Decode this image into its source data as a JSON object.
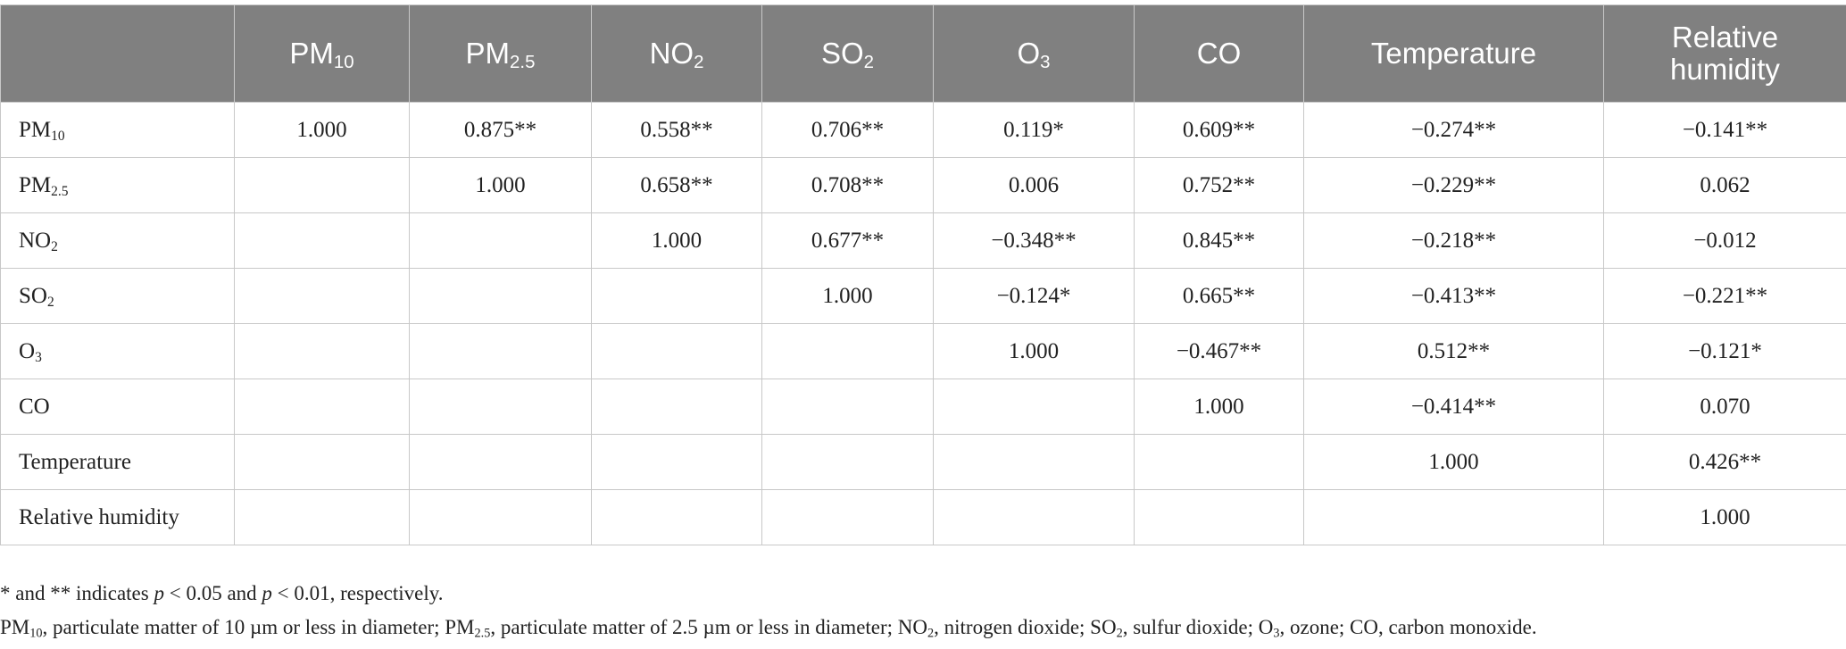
{
  "table": {
    "columns": [
      [
        {
          "text": "PM"
        },
        {
          "text": "10",
          "style": "sub"
        }
      ],
      [
        {
          "text": "PM"
        },
        {
          "text": "2.5",
          "style": "sub"
        }
      ],
      [
        {
          "text": "NO"
        },
        {
          "text": "2",
          "style": "sub"
        }
      ],
      [
        {
          "text": "SO"
        },
        {
          "text": "2",
          "style": "sub"
        }
      ],
      [
        {
          "text": "O"
        },
        {
          "text": "3",
          "style": "sub"
        }
      ],
      [
        {
          "text": "CO"
        }
      ],
      [
        {
          "text": "Temperature"
        }
      ],
      [
        {
          "text": "Relative humidity"
        }
      ]
    ],
    "rows": [
      {
        "label": [
          {
            "text": "PM"
          },
          {
            "text": "10",
            "style": "sub"
          }
        ],
        "cells": [
          "1.000",
          "0.875**",
          "0.558**",
          "0.706**",
          "0.119*",
          "0.609**",
          "−0.274**",
          "−0.141**"
        ]
      },
      {
        "label": [
          {
            "text": "PM"
          },
          {
            "text": "2.5",
            "style": "sub"
          }
        ],
        "cells": [
          null,
          "1.000",
          "0.658**",
          "0.708**",
          "0.006",
          "0.752**",
          "−0.229**",
          "0.062"
        ]
      },
      {
        "label": [
          {
            "text": "NO"
          },
          {
            "text": "2",
            "style": "sub"
          }
        ],
        "cells": [
          null,
          null,
          "1.000",
          "0.677**",
          "−0.348**",
          "0.845**",
          "−0.218**",
          "−0.012"
        ]
      },
      {
        "label": [
          {
            "text": "SO"
          },
          {
            "text": "2",
            "style": "sub"
          }
        ],
        "cells": [
          null,
          null,
          null,
          "1.000",
          "−0.124*",
          "0.665**",
          "−0.413**",
          "−0.221**"
        ]
      },
      {
        "label": [
          {
            "text": "O"
          },
          {
            "text": "3",
            "style": "sub"
          }
        ],
        "cells": [
          null,
          null,
          null,
          null,
          "1.000",
          "−0.467**",
          "0.512**",
          "−0.121*"
        ]
      },
      {
        "label": [
          {
            "text": "CO"
          }
        ],
        "cells": [
          null,
          null,
          null,
          null,
          null,
          "1.000",
          "−0.414**",
          "0.070"
        ]
      },
      {
        "label": [
          {
            "text": "Temperature"
          }
        ],
        "cells": [
          null,
          null,
          null,
          null,
          null,
          null,
          "1.000",
          "0.426**"
        ]
      },
      {
        "label": [
          {
            "text": "Relative humidity"
          }
        ],
        "cells": [
          null,
          null,
          null,
          null,
          null,
          null,
          null,
          "1.000"
        ]
      }
    ]
  },
  "footnotes": [
    [
      {
        "text": "* and ** indicates "
      },
      {
        "text": "p",
        "style": "italic"
      },
      {
        "text": " < 0.05 and "
      },
      {
        "text": "p",
        "style": "italic"
      },
      {
        "text": " < 0.01, respectively."
      }
    ],
    [
      {
        "text": "PM"
      },
      {
        "text": "10",
        "style": "sub"
      },
      {
        "text": ", particulate matter of 10 µm or less in diameter; PM"
      },
      {
        "text": "2.5",
        "style": "sub"
      },
      {
        "text": ", particulate matter of 2.5 µm or less in diameter; NO"
      },
      {
        "text": "2",
        "style": "sub"
      },
      {
        "text": ", nitrogen dioxide; SO"
      },
      {
        "text": "2",
        "style": "sub"
      },
      {
        "text": ", sulfur dioxide; O"
      },
      {
        "text": "3",
        "style": "sub"
      },
      {
        "text": ", ozone; CO, carbon monoxide."
      }
    ]
  ]
}
